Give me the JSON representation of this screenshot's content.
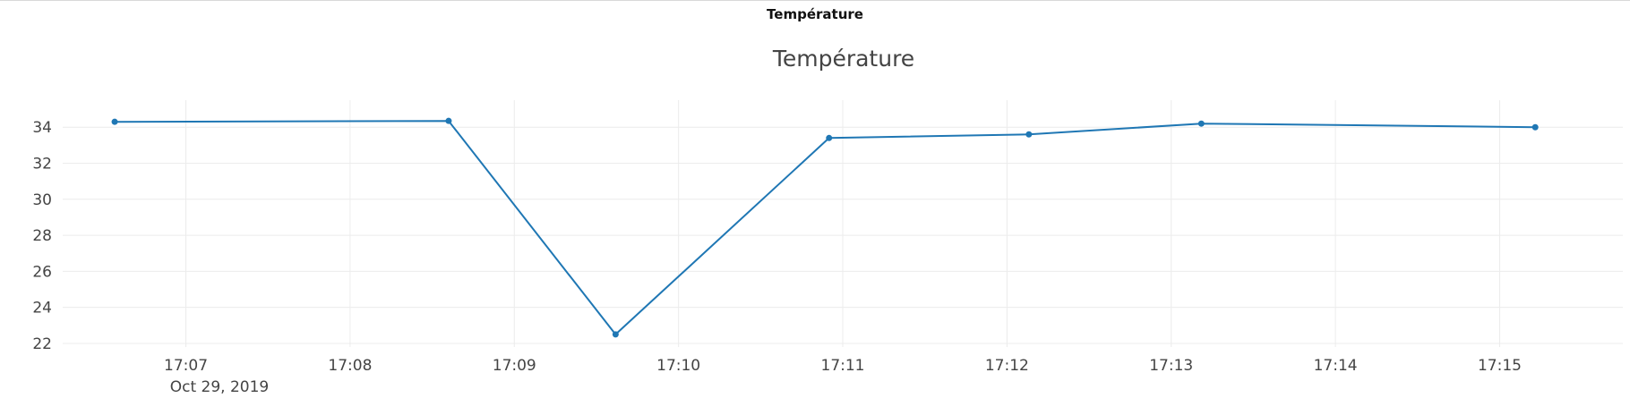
{
  "panel": {
    "title": "Température"
  },
  "chart_data": {
    "type": "line",
    "title": "Température",
    "xlabel": "",
    "ylabel": "",
    "date_label": "Oct 29, 2019",
    "x": [
      "17:06:34",
      "17:08:36",
      "17:09:37",
      "17:10:55",
      "17:12:08",
      "17:13:11",
      "17:15:13"
    ],
    "series": [
      {
        "values": [
          34.3,
          34.35,
          22.5,
          33.4,
          33.6,
          34.2,
          34.0
        ]
      }
    ],
    "xticks": [
      "17:07",
      "17:08",
      "17:09",
      "17:10",
      "17:11",
      "17:12",
      "17:13",
      "17:14",
      "17:15"
    ],
    "yticks": [
      22,
      24,
      26,
      28,
      30,
      32,
      34
    ],
    "xlim": [
      "17:06:15",
      "17:15:45"
    ],
    "ylim": [
      21.8,
      35.5
    ],
    "grid": true,
    "line_color": "#1f77b4",
    "grid_color": "#ececec"
  }
}
